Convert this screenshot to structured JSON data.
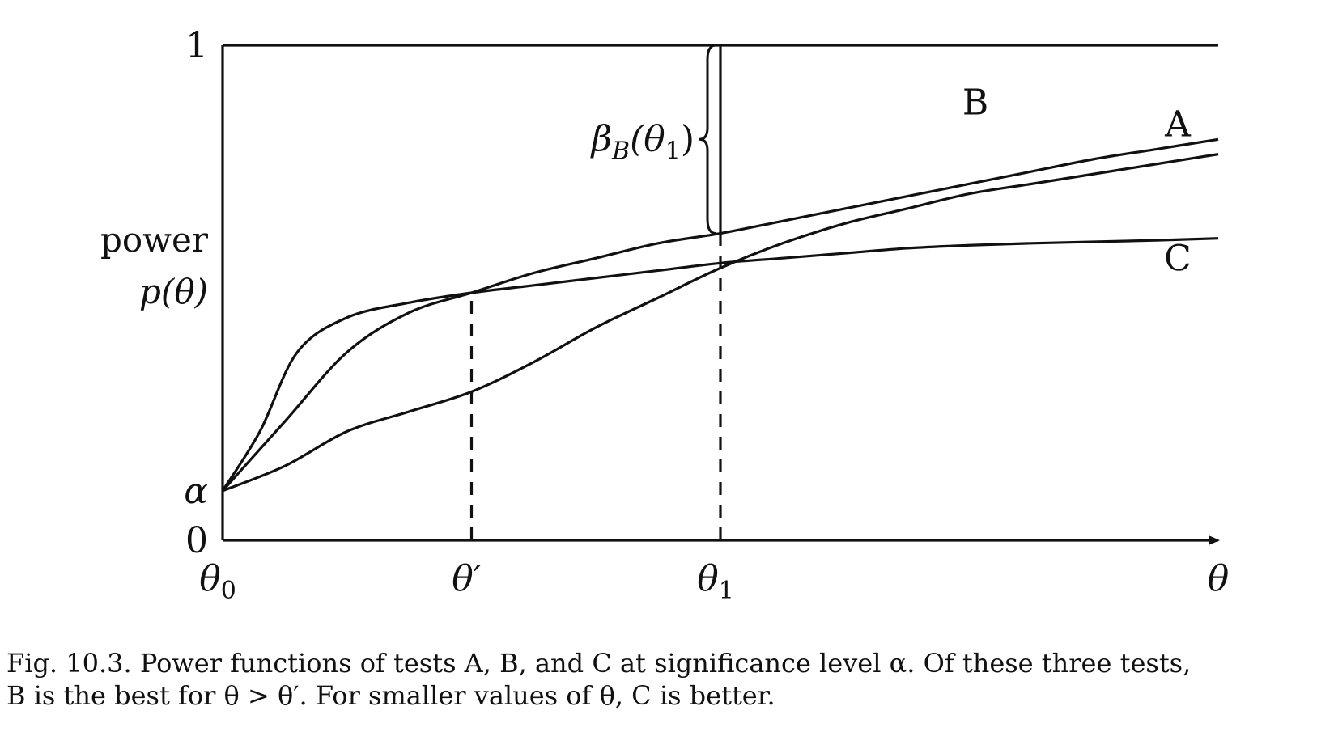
{
  "chart_data": {
    "type": "line",
    "title": "",
    "xlabel": "θ",
    "ylabel": [
      "power",
      "p(θ)"
    ],
    "xlim": [
      0,
      4
    ],
    "ylim": [
      0,
      1
    ],
    "x_ticks": [
      {
        "x": 0,
        "label": "θ",
        "sub": "0",
        "prime": false
      },
      {
        "x": 1,
        "label": "θ",
        "sub": "",
        "prime": true
      },
      {
        "x": 2,
        "label": "θ",
        "sub": "1",
        "prime": false
      }
    ],
    "y_ticks": [
      {
        "y": 0,
        "label": "0",
        "italic": false
      },
      {
        "y": 0.1,
        "label": "α",
        "italic": true
      },
      {
        "y": 1,
        "label": "1",
        "italic": false
      }
    ],
    "series": [
      {
        "name": "A",
        "x": [
          0,
          0.25,
          0.5,
          0.75,
          1,
          1.25,
          1.5,
          1.75,
          2,
          2.25,
          2.5,
          2.75,
          3,
          3.25,
          3.5,
          3.75,
          4
        ],
        "y": [
          0.1,
          0.15,
          0.22,
          0.26,
          0.3,
          0.36,
          0.43,
          0.49,
          0.55,
          0.6,
          0.64,
          0.67,
          0.7,
          0.72,
          0.74,
          0.76,
          0.78
        ]
      },
      {
        "name": "B",
        "x": [
          0,
          0.25,
          0.5,
          0.75,
          1,
          1.25,
          1.5,
          1.75,
          2,
          2.25,
          2.5,
          2.75,
          3,
          3.25,
          3.5,
          3.75,
          4
        ],
        "y": [
          0.1,
          0.24,
          0.38,
          0.46,
          0.5,
          0.54,
          0.57,
          0.6,
          0.62,
          0.645,
          0.67,
          0.695,
          0.72,
          0.745,
          0.77,
          0.79,
          0.81
        ]
      },
      {
        "name": "C",
        "x": [
          0,
          0.15,
          0.3,
          0.5,
          0.75,
          1,
          1.25,
          1.5,
          1.75,
          2,
          2.25,
          2.5,
          2.75,
          3,
          3.25,
          3.5,
          3.75,
          4
        ],
        "y": [
          0.1,
          0.22,
          0.38,
          0.45,
          0.48,
          0.5,
          0.515,
          0.53,
          0.545,
          0.56,
          0.57,
          0.58,
          0.59,
          0.596,
          0.6,
          0.603,
          0.606,
          0.61
        ]
      }
    ],
    "reference_lines": [
      {
        "type": "horizontal",
        "y": 1,
        "style": "solid"
      },
      {
        "type": "vertical",
        "x": 1,
        "from_y": 0,
        "to_y": 0.5,
        "style": "dashed"
      },
      {
        "type": "vertical",
        "x": 2,
        "from_y": 0,
        "to_y": 0.62,
        "style": "dashed"
      },
      {
        "type": "vertical",
        "x": 2,
        "from_y": 0.62,
        "to_y": 1,
        "style": "solid"
      }
    ],
    "annotations": [
      {
        "text": "β",
        "sub": "B",
        "arg": "(θ",
        "arg_sub": "1",
        "close": ")",
        "at_x": 2,
        "from_y": 0.62,
        "to_y": 1,
        "brace": "left"
      }
    ],
    "grid": false,
    "legend": "none (series labelled at right end)"
  },
  "caption": {
    "line1": "Fig. 10.3. Power functions of tests A, B, and C at significance level α. Of these three tests,",
    "line2": "B is the best for θ > θ′. For smaller values of θ, C is better."
  }
}
